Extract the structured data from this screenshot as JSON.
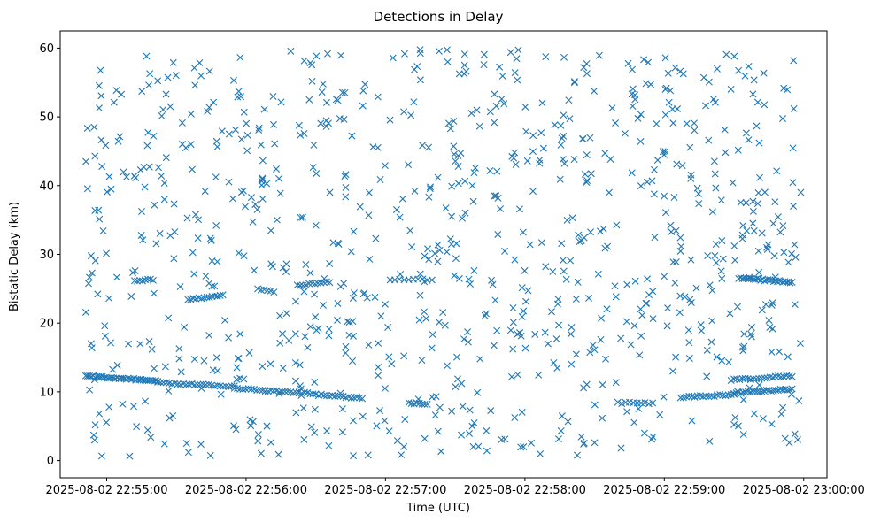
{
  "chart_data": {
    "type": "scatter",
    "title": "Detections in Delay",
    "xlabel": "Time (UTC)",
    "ylabel": "Bistatic Delay (km)",
    "marker": "x",
    "color": "#1f77b4",
    "grid": false,
    "x_start": "2025-08-02 22:54:51",
    "x_end": "2025-08-02 22:59:59",
    "xlim": [
      "2025-08-02 22:54:40",
      "2025-08-02 23:00:10"
    ],
    "ylim": [
      -2.5,
      62.5
    ],
    "xticks": [
      "2025-08-02 22:55:00",
      "2025-08-02 22:56:00",
      "2025-08-02 22:57:00",
      "2025-08-02 22:58:00",
      "2025-08-02 22:59:00",
      "2025-08-02 23:00:00"
    ],
    "yticks": [
      0,
      10,
      20,
      30,
      40,
      50,
      60
    ],
    "tracks": [
      {
        "t0": "2025-08-02 22:54:51",
        "t1": "2025-08-02 22:55:22",
        "y0": 12.3,
        "y1": 11.6,
        "n": 40
      },
      {
        "t0": "2025-08-02 22:55:22",
        "t1": "2025-08-02 22:55:55",
        "y0": 11.3,
        "y1": 10.8,
        "n": 28
      },
      {
        "t0": "2025-08-02 22:55:55",
        "t1": "2025-08-02 22:56:30",
        "y0": 10.5,
        "y1": 9.7,
        "n": 30
      },
      {
        "t0": "2025-08-02 22:56:30",
        "t1": "2025-08-02 22:56:50",
        "y0": 9.6,
        "y1": 9.1,
        "n": 18
      },
      {
        "t0": "2025-08-02 22:57:10",
        "t1": "2025-08-02 22:57:18",
        "y0": 8.4,
        "y1": 8.1,
        "n": 8
      },
      {
        "t0": "2025-08-02 22:58:40",
        "t1": "2025-08-02 22:58:55",
        "y0": 8.4,
        "y1": 8.3,
        "n": 10
      },
      {
        "t0": "2025-08-02 22:59:07",
        "t1": "2025-08-02 22:59:30",
        "y0": 9.2,
        "y1": 9.6,
        "n": 20
      },
      {
        "t0": "2025-08-02 22:59:30",
        "t1": "2025-08-02 22:59:55",
        "y0": 9.8,
        "y1": 10.4,
        "n": 26
      },
      {
        "t0": "2025-08-02 22:59:30",
        "t1": "2025-08-02 22:59:55",
        "y0": 11.8,
        "y1": 12.3,
        "n": 22
      },
      {
        "t0": "2025-08-02 22:59:32",
        "t1": "2025-08-02 22:59:55",
        "y0": 26.6,
        "y1": 25.9,
        "n": 30
      },
      {
        "t0": "2025-08-02 22:55:12",
        "t1": "2025-08-02 22:55:20",
        "y0": 26.2,
        "y1": 26.3,
        "n": 8
      },
      {
        "t0": "2025-08-02 22:55:35",
        "t1": "2025-08-02 22:55:50",
        "y0": 23.5,
        "y1": 24.0,
        "n": 14
      },
      {
        "t0": "2025-08-02 22:56:22",
        "t1": "2025-08-02 22:56:36",
        "y0": 25.5,
        "y1": 26.0,
        "n": 12
      },
      {
        "t0": "2025-08-02 22:57:02",
        "t1": "2025-08-02 22:57:20",
        "y0": 26.3,
        "y1": 26.3,
        "n": 10
      },
      {
        "t0": "2025-08-02 22:56:05",
        "t1": "2025-08-02 22:56:12",
        "y0": 24.9,
        "y1": 24.6,
        "n": 6
      }
    ],
    "scatter_seed": 20250802,
    "scatter_count": 900,
    "scatter_y_range": [
      0.5,
      59.8
    ]
  }
}
